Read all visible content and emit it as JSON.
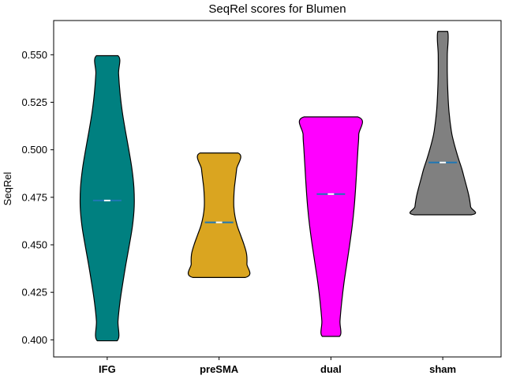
{
  "chart_data": {
    "type": "violin",
    "title": "SeqRel scores for Blumen",
    "xlabel": "",
    "ylabel": "SeqRel",
    "categories": [
      "IFG",
      "preSMA",
      "dual",
      "sham"
    ],
    "ylim": [
      0.391,
      0.568
    ],
    "yticks": [
      0.4,
      0.425,
      0.45,
      0.475,
      0.5,
      0.525,
      0.55
    ],
    "ytick_labels": [
      "0.400",
      "0.425",
      "0.450",
      "0.475",
      "0.500",
      "0.525",
      "0.550"
    ],
    "grid": false,
    "series": [
      {
        "category": "IFG",
        "color": "#008080",
        "min": 0.3995,
        "max": 0.5495,
        "mean": 0.4733,
        "median": 0.4733,
        "shape": [
          [
            0.3995,
            0.35
          ],
          [
            0.41,
            0.38
          ],
          [
            0.42,
            0.45
          ],
          [
            0.43,
            0.55
          ],
          [
            0.44,
            0.66
          ],
          [
            0.45,
            0.78
          ],
          [
            0.46,
            0.89
          ],
          [
            0.47,
            0.95
          ],
          [
            0.48,
            0.94
          ],
          [
            0.49,
            0.87
          ],
          [
            0.5,
            0.76
          ],
          [
            0.51,
            0.64
          ],
          [
            0.52,
            0.53
          ],
          [
            0.53,
            0.45
          ],
          [
            0.54,
            0.4
          ],
          [
            0.5495,
            0.38
          ]
        ]
      },
      {
        "category": "preSMA",
        "color": "#DAA520",
        "min": 0.4328,
        "max": 0.4983,
        "mean": 0.4618,
        "median": 0.4618,
        "shape": [
          [
            0.4328,
            0.92
          ],
          [
            0.44,
            0.98
          ],
          [
            0.445,
            0.97
          ],
          [
            0.45,
            0.88
          ],
          [
            0.455,
            0.76
          ],
          [
            0.46,
            0.64
          ],
          [
            0.465,
            0.56
          ],
          [
            0.47,
            0.52
          ],
          [
            0.475,
            0.52
          ],
          [
            0.48,
            0.54
          ],
          [
            0.485,
            0.58
          ],
          [
            0.49,
            0.62
          ],
          [
            0.4983,
            0.67
          ]
        ]
      },
      {
        "category": "dual",
        "color": "#FF00FF",
        "min": 0.4018,
        "max": 0.5173,
        "mean": 0.4767,
        "median": 0.4767,
        "shape": [
          [
            0.4018,
            0.3
          ],
          [
            0.41,
            0.32
          ],
          [
            0.42,
            0.38
          ],
          [
            0.43,
            0.46
          ],
          [
            0.44,
            0.56
          ],
          [
            0.45,
            0.66
          ],
          [
            0.46,
            0.75
          ],
          [
            0.47,
            0.82
          ],
          [
            0.48,
            0.87
          ],
          [
            0.49,
            0.91
          ],
          [
            0.5,
            0.95
          ],
          [
            0.508,
            0.98
          ],
          [
            0.5173,
            0.95
          ]
        ]
      },
      {
        "category": "sham",
        "color": "#808080",
        "min": 0.4658,
        "max": 0.5623,
        "mean": 0.4933,
        "median": 0.4933,
        "shape": [
          [
            0.4658,
            1.0
          ],
          [
            0.47,
            0.98
          ],
          [
            0.475,
            0.93
          ],
          [
            0.48,
            0.85
          ],
          [
            0.485,
            0.76
          ],
          [
            0.49,
            0.67
          ],
          [
            0.495,
            0.56
          ],
          [
            0.5,
            0.46
          ],
          [
            0.505,
            0.37
          ],
          [
            0.51,
            0.3
          ],
          [
            0.52,
            0.22
          ],
          [
            0.53,
            0.18
          ],
          [
            0.54,
            0.16
          ],
          [
            0.55,
            0.16
          ],
          [
            0.5623,
            0.17
          ]
        ]
      }
    ],
    "mean_line_color": "#1f77b4",
    "median_line_color": "#ffffff"
  }
}
